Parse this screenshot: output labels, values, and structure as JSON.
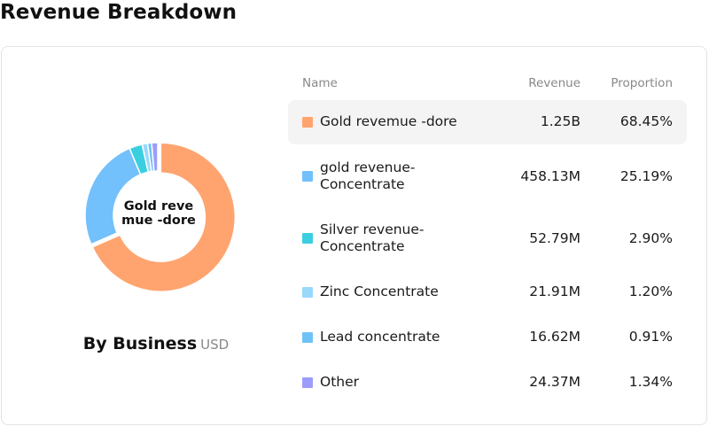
{
  "page": {
    "title": "Revenue Breakdown"
  },
  "donut": {
    "center_label_line1": "Gold reve",
    "center_label_line2": "mue -dore",
    "group_title": "By Business",
    "unit": "USD"
  },
  "table": {
    "headers": {
      "name": "Name",
      "revenue": "Revenue",
      "proportion": "Proportion"
    }
  },
  "chart_data": {
    "type": "pie",
    "title": "Revenue Breakdown",
    "subtitle": "By Business",
    "unit": "USD",
    "categories": [
      "Gold revemue -dore",
      "gold revenue-Concentrate",
      "Silver revenue-Concentrate",
      "Zinc Concentrate",
      "Lead concentrate",
      "Other"
    ],
    "revenue_labels": [
      "1.25B",
      "458.13M",
      "52.79M",
      "21.91M",
      "16.62M",
      "24.37M"
    ],
    "proportion_labels": [
      "68.45%",
      "25.19%",
      "2.90%",
      "1.20%",
      "0.91%",
      "1.34%"
    ],
    "values": [
      68.45,
      25.19,
      2.9,
      1.2,
      0.91,
      1.34
    ],
    "colors": [
      "#ffa46f",
      "#72c0fc",
      "#3acfe0",
      "#99d9fa",
      "#6fc2f7",
      "#9d9cfa"
    ],
    "highlighted": "Gold revemue -dore"
  }
}
